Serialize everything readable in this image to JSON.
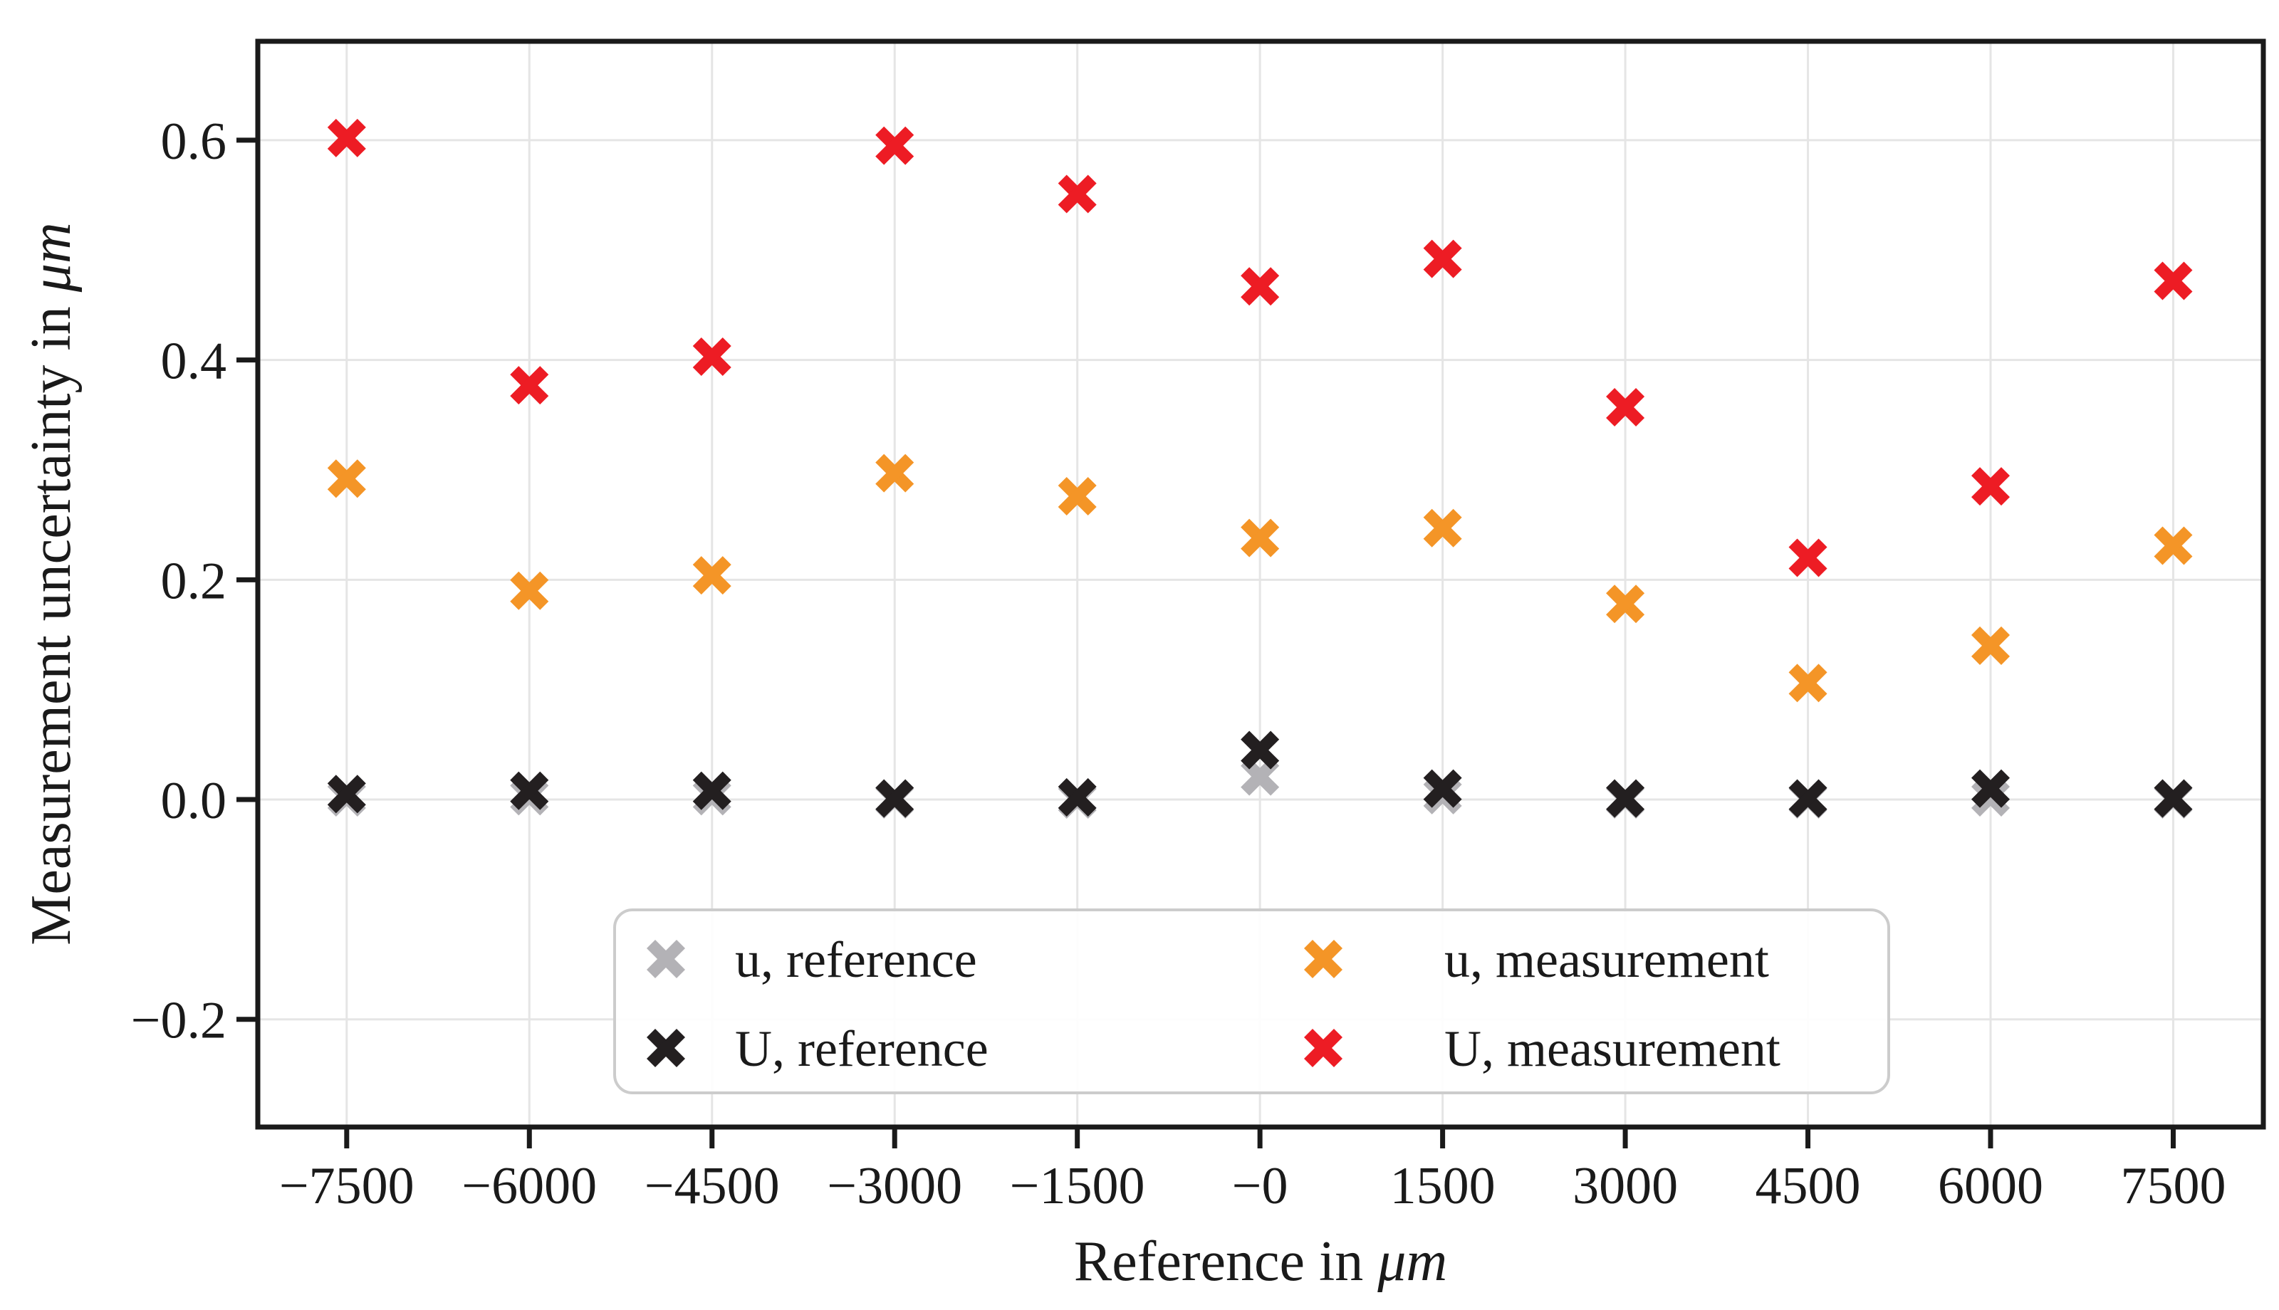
{
  "figure": {
    "background": "#ffffff",
    "frame_color": "#1a1a1a",
    "grid_color": "#e5e5e5",
    "legend_border_color": "#cccccc",
    "legend_background": "#ffffff"
  },
  "chart_data": {
    "type": "scatter",
    "marker": "X",
    "grid": true,
    "title": "",
    "xlabel": "Reference in",
    "xlabel_unit": "μm",
    "ylabel": "Measurement uncertainty in",
    "ylabel_unit": "μm",
    "x": [
      -7500,
      -6000,
      -4500,
      -3000,
      -1500,
      0,
      1500,
      3000,
      4500,
      6000,
      7500
    ],
    "x_tick_labels": [
      "−7500",
      "−6000",
      "−4500",
      "−3000",
      "−1500",
      "−0",
      "1500",
      "3000",
      "4500",
      "6000",
      "7500"
    ],
    "yticks": [
      0.6,
      0.4,
      0.2,
      0.0,
      -0.2
    ],
    "ytick_labels": [
      "0.6",
      "0.4",
      "0.2",
      "0.0",
      "−0.2"
    ],
    "xlim": [
      -8230,
      8240
    ],
    "ylim": [
      -0.298,
      0.69
    ],
    "legend_position": "lower center",
    "series": [
      {
        "name": "u, reference",
        "color": "#b3b2b6",
        "values": [
          0.002,
          0.003,
          0.003,
          0.0,
          0.0,
          0.021,
          0.004,
          0.0,
          0.0,
          0.002,
          0.0
        ]
      },
      {
        "name": "U, reference",
        "color": "#231f20",
        "values": [
          0.005,
          0.008,
          0.008,
          0.001,
          0.002,
          0.045,
          0.01,
          0.001,
          0.001,
          0.01,
          0.001
        ]
      },
      {
        "name": "u, measurement",
        "color": "#f49527",
        "values": [
          0.292,
          0.19,
          0.204,
          0.297,
          0.276,
          0.238,
          0.247,
          0.178,
          0.106,
          0.14,
          0.231
        ]
      },
      {
        "name": "U, measurement",
        "color": "#ed1c24",
        "values": [
          0.602,
          0.377,
          0.403,
          0.595,
          0.551,
          0.467,
          0.492,
          0.357,
          0.22,
          0.285,
          0.472
        ]
      }
    ]
  }
}
